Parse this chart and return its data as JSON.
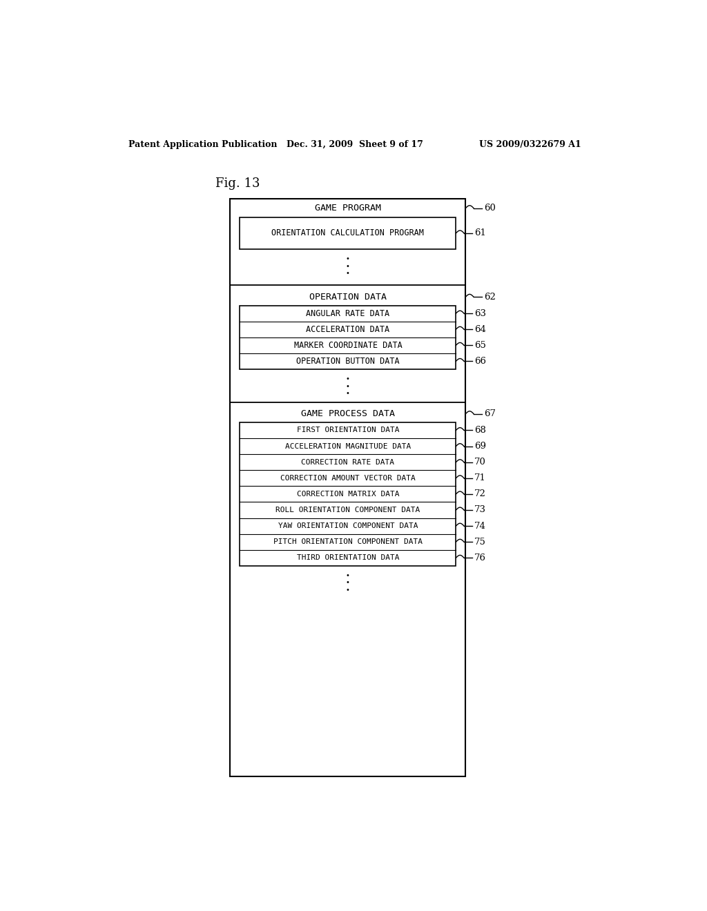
{
  "header_left": "Patent Application Publication",
  "header_mid": "Dec. 31, 2009  Sheet 9 of 17",
  "header_right": "US 2009/0322679 A1",
  "fig_label": "Fig. 13",
  "bg_color": "#ffffff",
  "diagram": {
    "outer_box_label": "GAME PROGRAM",
    "outer_box_ref": "60",
    "sections": [
      {
        "type": "section_with_inner",
        "inner_label": "ORIENTATION CALCULATION PROGRAM",
        "inner_ref": "61",
        "has_dots": true
      },
      {
        "type": "section_with_inners",
        "header": "OPERATION DATA",
        "header_ref": "62",
        "items": [
          {
            "label": "ANGULAR RATE DATA",
            "ref": "63"
          },
          {
            "label": "ACCELERATION DATA",
            "ref": "64"
          },
          {
            "label": "MARKER COORDINATE DATA",
            "ref": "65"
          },
          {
            "label": "OPERATION BUTTON DATA",
            "ref": "66"
          }
        ],
        "has_dots": true
      },
      {
        "type": "section_with_inners",
        "header": "GAME PROCESS DATA",
        "header_ref": "67",
        "items": [
          {
            "label": "FIRST ORIENTATION DATA",
            "ref": "68"
          },
          {
            "label": "ACCELERATION MAGNITUDE DATA",
            "ref": "69"
          },
          {
            "label": "CORRECTION RATE DATA",
            "ref": "70"
          },
          {
            "label": "CORRECTION AMOUNT VECTOR DATA",
            "ref": "71"
          },
          {
            "label": "CORRECTION MATRIX DATA",
            "ref": "72"
          },
          {
            "label": "ROLL ORIENTATION COMPONENT DATA",
            "ref": "73"
          },
          {
            "label": "YAW ORIENTATION COMPONENT DATA",
            "ref": "74"
          },
          {
            "label": "PITCH ORIENTATION COMPONENT DATA",
            "ref": "75"
          },
          {
            "label": "THIRD ORIENTATION DATA",
            "ref": "76"
          }
        ],
        "has_dots": true
      }
    ]
  }
}
